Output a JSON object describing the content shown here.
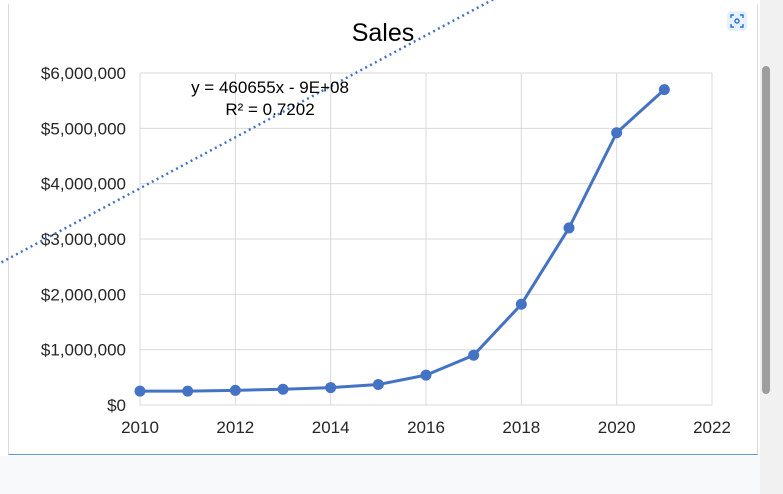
{
  "toolbar": {
    "icon": "screenshot-icon"
  },
  "colors": {
    "series": "#4472c4",
    "grid": "#d9d9d9",
    "axis_text": "#262626"
  },
  "chart_data": {
    "type": "line",
    "title": "Sales",
    "xlabel": "",
    "ylabel": "",
    "x": [
      2010,
      2011,
      2012,
      2013,
      2014,
      2015,
      2016,
      2017,
      2018,
      2019,
      2020,
      2021
    ],
    "series": [
      {
        "values": [
          250000,
          250000,
          265000,
          285000,
          315000,
          370000,
          540000,
          900000,
          1820000,
          3200000,
          4920000,
          5700000
        ]
      }
    ],
    "trendline": {
      "type": "linear",
      "slope": 460655,
      "intercept": -922000000,
      "r2": 0.7202,
      "style": "dotted"
    },
    "annotation": {
      "equation": "y = 460655x - 9E+08",
      "r_squared": "R² = 0.7202"
    },
    "xlim": [
      2010,
      2022
    ],
    "ylim": [
      0,
      6000000
    ],
    "x_ticks": [
      "2010",
      "2012",
      "2014",
      "2016",
      "2018",
      "2020",
      "2022"
    ],
    "y_ticks": [
      "$0",
      "$1,000,000",
      "$2,000,000",
      "$3,000,000",
      "$4,000,000",
      "$5,000,000",
      "$6,000,000"
    ],
    "grid": true,
    "legend": "none"
  }
}
